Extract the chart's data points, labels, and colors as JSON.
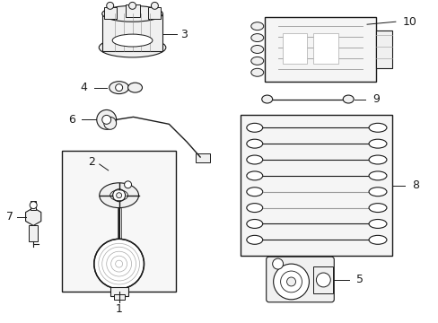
{
  "bg_color": "#ffffff",
  "line_color": "#1a1a1a",
  "gray_color": "#999999",
  "fill_color": "#f0f0f0",
  "wire_fill": "#e8e8e8",
  "label_fontsize": 9,
  "small_fontsize": 7
}
